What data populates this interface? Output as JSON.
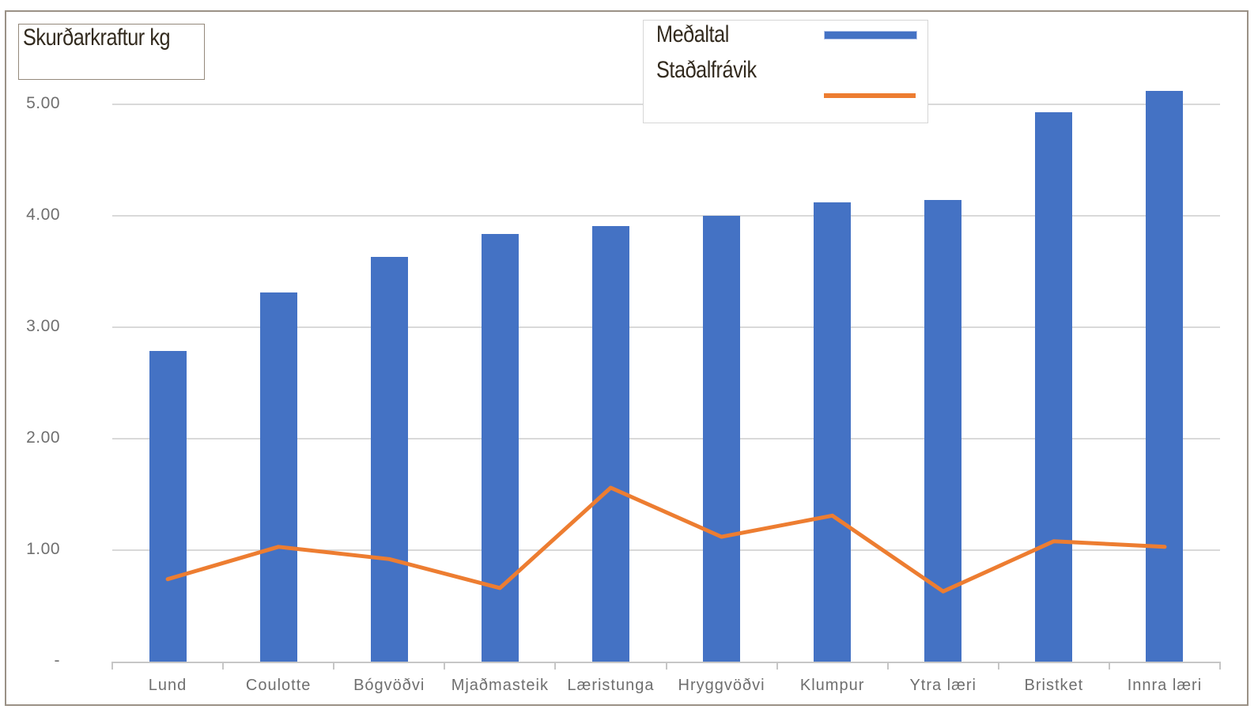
{
  "title_box": {
    "text": "Skurðarkraftur kg"
  },
  "legend": {
    "items": [
      {
        "label": "Meðaltal",
        "type": "bar",
        "color": "#4472C4"
      },
      {
        "label": "Staðalfrávik",
        "type": "line",
        "color": "#ED7D31"
      }
    ]
  },
  "chart_data": {
    "type": "bar",
    "subtype": "bar-with-line-overlay",
    "title": "Skurðarkraftur kg",
    "xlabel": "",
    "ylabel": "",
    "ylim": [
      0,
      5.5
    ],
    "grid": true,
    "legend_position": "top-right",
    "categories": [
      "Lund",
      "Coulotte",
      "Bógvöðvi",
      "Mjaðmasteik",
      "Læristunga",
      "Hryggvöðvi",
      "Klumpur",
      "Ytra læri",
      "Bristket",
      "Innra læri"
    ],
    "series": [
      {
        "name": "Meðaltal",
        "type": "bar",
        "color": "#4472C4",
        "values": [
          2.79,
          3.31,
          3.63,
          3.84,
          3.91,
          4.0,
          4.12,
          4.14,
          4.93,
          5.12
        ]
      },
      {
        "name": "Staðalfrávik",
        "type": "line",
        "color": "#ED7D31",
        "values": [
          0.74,
          1.03,
          0.92,
          0.66,
          1.56,
          1.12,
          1.31,
          0.63,
          1.08,
          1.03
        ]
      }
    ],
    "y_ticks": [
      {
        "value": 0,
        "label": "-"
      },
      {
        "value": 1,
        "label": "1.00"
      },
      {
        "value": 2,
        "label": "2.00"
      },
      {
        "value": 3,
        "label": "3.00"
      },
      {
        "value": 4,
        "label": "4.00"
      },
      {
        "value": 5,
        "label": "5.00"
      }
    ]
  },
  "colors": {
    "bar": "#4472C4",
    "line": "#ED7D31",
    "gridline": "#D9D9D9",
    "axis": "#C6C6C6",
    "tick_text": "#6F6F6F",
    "title_text": "#322A1E",
    "frame_border": "#9A9186",
    "title_box_border": "#94897B",
    "legend_border": "#D6D6D6",
    "background": "#FFFFFF"
  }
}
